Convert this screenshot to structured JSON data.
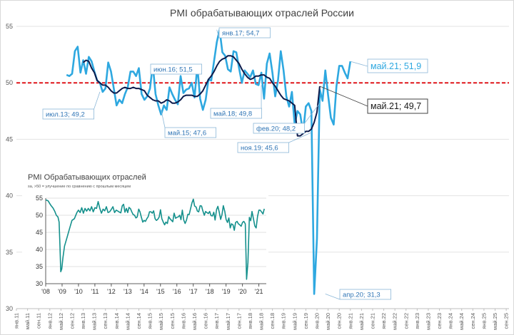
{
  "chart_data": [
    {
      "type": "line",
      "title": "PMI обрабатывающих отраслей России",
      "ylim": [
        30,
        55
      ],
      "y_ticks": [
        30,
        35,
        40,
        45,
        50,
        55
      ],
      "y_tick_labels": [
        "30",
        "35",
        "40",
        "45",
        "50",
        "55"
      ],
      "grid": true,
      "x_tick_labels": [
        "янв.11",
        "май.11",
        "сен.11",
        "янв.12",
        "май.12",
        "сен.12",
        "янв.13",
        "май.13",
        "сен.13",
        "янв.14",
        "май.14",
        "сен.14",
        "янв.15",
        "май.15",
        "сен.15",
        "янв.16",
        "май.16",
        "сен.16",
        "янв.17",
        "май.17",
        "сен.17",
        "янв.18",
        "май.18",
        "сен.18",
        "янв.19",
        "май.19",
        "сен.19",
        "янв.20",
        "май.20",
        "сен.20",
        "янв.21",
        "май.21",
        "сен.21",
        "янв.22",
        "май.22",
        "сен.22",
        "янв.23",
        "май.23",
        "сен.23",
        "янв.24",
        "май.24",
        "сен.24",
        "янв.25",
        "май.25",
        "сен.25"
      ],
      "reference_line": 50,
      "series": [
        {
          "color": "#2ea8e0",
          "start": "2012-07",
          "values": [
            50.7,
            50.6,
            50.8,
            52.8,
            53.2,
            50.9,
            52.0,
            50.8,
            52.3,
            51.9,
            51.0,
            50.2,
            50.0,
            49.2,
            49.5,
            51.8,
            51.0,
            49.5,
            48.0,
            48.5,
            48.2,
            49.0,
            49.6,
            51.0,
            51.0,
            50.6,
            51.3,
            49.0,
            48.5,
            48.8,
            49.5,
            51.6,
            49.0,
            48.0,
            47.2,
            48.0,
            47.6,
            49.6,
            49.0,
            48.5,
            48.1,
            50.6,
            49.1,
            49.4,
            49.5,
            50.0,
            48.7,
            51.5,
            48.6,
            47.6,
            48.5,
            50.3,
            50.2,
            51.9,
            53.6,
            54.7,
            52.7,
            52.4,
            51.2,
            51.0,
            52.8,
            52.7,
            51.3,
            50.0,
            51.1,
            50.8,
            50.5,
            51.1,
            49.9,
            49.8,
            50.9,
            48.6,
            51.7,
            52.6,
            50.9,
            48.8,
            50.2,
            52.8,
            51.1,
            48.8,
            47.9,
            49.2,
            46.3,
            47.5,
            47.2,
            45.6,
            47.9,
            48.2,
            47.5,
            31.3,
            36.2,
            49.4,
            48.4,
            51.1,
            48.9,
            46.9,
            46.3,
            49.7,
            51.5,
            51.5,
            50.9,
            50.4,
            51.9
          ],
          "last_label": "май.21; 51,9"
        },
        {
          "color": "#0d1b4c",
          "start": "2013-01",
          "values": [
            51.8,
            52.0,
            51.9,
            51.3,
            50.9,
            50.2,
            50.0,
            49.8,
            49.8,
            49.6,
            49.3,
            49.1,
            49.1,
            49.3,
            49.5,
            49.6,
            49.5,
            49.5,
            49.6,
            49.5,
            49.5,
            49.4,
            49.3,
            48.9,
            48.7,
            48.5,
            48.4,
            48.4,
            48.2,
            48.3,
            48.5,
            48.4,
            48.2,
            48.2,
            48.3,
            48.5,
            48.8,
            48.9,
            48.9,
            48.9,
            48.8,
            48.8,
            49.0,
            49.3,
            49.8,
            50.3,
            50.6,
            51.0,
            51.5,
            51.9,
            52.1,
            52.2,
            52.4,
            52.4,
            52.3,
            52.0,
            51.7,
            51.2,
            50.8,
            50.5,
            50.3,
            50.4,
            50.6,
            50.6,
            50.7,
            50.7,
            50.5,
            50.4,
            50.0,
            49.7,
            49.3,
            48.9,
            48.6,
            48.5,
            48.4,
            48.2,
            48.0,
            45.3,
            45.3,
            45.5,
            45.7,
            45.7,
            45.9,
            46.5,
            47.4,
            49.7
          ],
          "last_label": "май.21; 49,7"
        }
      ],
      "annotations": [
        "июл.13; 49,2",
        "май.15; 47,6",
        "июн.16; 51,5",
        "янв.17; 54,7",
        "май.18; 49,8",
        "фев.20; 48,2",
        "ноя.19; 45,6",
        "апр.20; 31,3",
        "май.21; 51,9",
        "май.21; 49,7"
      ]
    },
    {
      "type": "line",
      "title": "PMI Обрабатывающих отраслей",
      "subtitle": "sa, >50 = улучшение по сравнению с прошлым месяцем",
      "ylim": [
        30,
        55
      ],
      "y_ticks": [
        30,
        35,
        40,
        45,
        50,
        55
      ],
      "y_tick_labels": [
        "30",
        "35",
        "40",
        "45",
        "50",
        "55"
      ],
      "x_ticks": [
        2008,
        2009,
        2010,
        2011,
        2012,
        2013,
        2014,
        2015,
        2016,
        2017,
        2018,
        2019,
        2020,
        2021
      ],
      "x_tick_labels": [
        "'08",
        "'09",
        "'10",
        "'11",
        "'12",
        "'13",
        "'14",
        "'15",
        "'16",
        "'17",
        "'18",
        "'19",
        "'20",
        "'21"
      ],
      "xlim": [
        2008.0,
        2021.45
      ],
      "series": [
        {
          "color": "#14908c",
          "points": [
            [
              2008.0,
              54.5
            ],
            [
              2008.15,
              54.2
            ],
            [
              2008.3,
              53.0
            ],
            [
              2008.45,
              52.1
            ],
            [
              2008.55,
              51.2
            ],
            [
              2008.65,
              50.0
            ],
            [
              2008.75,
              49.5
            ],
            [
              2008.82,
              48.0
            ],
            [
              2008.87,
              41.0
            ],
            [
              2008.92,
              33.5
            ],
            [
              2008.98,
              34.3
            ],
            [
              2009.05,
              37.5
            ],
            [
              2009.15,
              41.0
            ],
            [
              2009.3,
              43.5
            ],
            [
              2009.45,
              46.0
            ],
            [
              2009.6,
              48.5
            ],
            [
              2009.75,
              49.0
            ],
            [
              2009.9,
              50.8
            ],
            [
              2010.0,
              51.5
            ],
            [
              2010.1,
              50.8
            ],
            [
              2010.2,
              52.2
            ],
            [
              2010.3,
              50.6
            ],
            [
              2010.4,
              52.0
            ],
            [
              2010.5,
              51.2
            ],
            [
              2010.6,
              52.0
            ],
            [
              2010.7,
              51.3
            ],
            [
              2010.8,
              52.5
            ],
            [
              2010.9,
              51.0
            ],
            [
              2011.0,
              52.2
            ],
            [
              2011.1,
              52.0
            ],
            [
              2011.2,
              54.0
            ],
            [
              2011.3,
              52.0
            ],
            [
              2011.4,
              50.6
            ],
            [
              2011.5,
              51.8
            ],
            [
              2011.6,
              51.3
            ],
            [
              2011.7,
              52.5
            ],
            [
              2011.8,
              50.8
            ],
            [
              2011.9,
              51.0
            ],
            [
              2012.0,
              51.7
            ],
            [
              2012.1,
              52.5
            ],
            [
              2012.2,
              50.8
            ],
            [
              2012.3,
              51.5
            ],
            [
              2012.4,
              51.2
            ],
            [
              2012.5,
              50.9
            ],
            [
              2012.58,
              50.7
            ],
            [
              2012.67,
              52.8
            ],
            [
              2012.75,
              53.2
            ],
            [
              2012.83,
              50.9
            ],
            [
              2012.92,
              52.0
            ],
            [
              2013.0,
              50.8
            ],
            [
              2013.08,
              52.3
            ],
            [
              2013.17,
              51.9
            ],
            [
              2013.25,
              51.0
            ],
            [
              2013.33,
              50.2
            ],
            [
              2013.42,
              50.0
            ],
            [
              2013.5,
              49.2
            ],
            [
              2013.58,
              49.5
            ],
            [
              2013.67,
              51.8
            ],
            [
              2013.75,
              51.0
            ],
            [
              2013.83,
              49.5
            ],
            [
              2013.92,
              48.0
            ],
            [
              2014.0,
              48.5
            ],
            [
              2014.08,
              48.2
            ],
            [
              2014.17,
              49.0
            ],
            [
              2014.25,
              49.6
            ],
            [
              2014.33,
              51.0
            ],
            [
              2014.42,
              51.0
            ],
            [
              2014.5,
              50.6
            ],
            [
              2014.58,
              51.3
            ],
            [
              2014.67,
              49.0
            ],
            [
              2014.75,
              48.5
            ],
            [
              2014.83,
              48.8
            ],
            [
              2014.92,
              49.5
            ],
            [
              2015.0,
              51.6
            ],
            [
              2015.08,
              49.0
            ],
            [
              2015.17,
              48.0
            ],
            [
              2015.25,
              47.2
            ],
            [
              2015.33,
              48.0
            ],
            [
              2015.42,
              47.6
            ],
            [
              2015.5,
              49.6
            ],
            [
              2015.58,
              49.0
            ],
            [
              2015.67,
              48.5
            ],
            [
              2015.75,
              48.1
            ],
            [
              2015.83,
              50.6
            ],
            [
              2015.92,
              49.1
            ],
            [
              2016.0,
              49.4
            ],
            [
              2016.08,
              49.5
            ],
            [
              2016.17,
              50.0
            ],
            [
              2016.25,
              48.7
            ],
            [
              2016.33,
              51.5
            ],
            [
              2016.42,
              48.6
            ],
            [
              2016.5,
              47.6
            ],
            [
              2016.58,
              48.5
            ],
            [
              2016.67,
              50.3
            ],
            [
              2016.75,
              50.2
            ],
            [
              2016.83,
              51.9
            ],
            [
              2016.92,
              53.6
            ],
            [
              2017.0,
              54.7
            ],
            [
              2017.08,
              52.7
            ],
            [
              2017.17,
              52.4
            ],
            [
              2017.25,
              51.2
            ],
            [
              2017.33,
              51.0
            ],
            [
              2017.42,
              52.8
            ],
            [
              2017.5,
              52.7
            ],
            [
              2017.58,
              51.3
            ],
            [
              2017.67,
              50.0
            ],
            [
              2017.75,
              51.1
            ],
            [
              2017.83,
              50.8
            ],
            [
              2017.92,
              50.5
            ],
            [
              2018.0,
              51.1
            ],
            [
              2018.08,
              49.9
            ],
            [
              2018.17,
              49.8
            ],
            [
              2018.25,
              50.9
            ],
            [
              2018.33,
              48.6
            ],
            [
              2018.42,
              51.7
            ],
            [
              2018.5,
              52.6
            ],
            [
              2018.58,
              50.9
            ],
            [
              2018.67,
              48.8
            ],
            [
              2018.75,
              50.2
            ],
            [
              2018.83,
              52.8
            ],
            [
              2018.92,
              51.1
            ],
            [
              2019.0,
              48.8
            ],
            [
              2019.08,
              47.9
            ],
            [
              2019.17,
              49.2
            ],
            [
              2019.25,
              46.3
            ],
            [
              2019.33,
              47.5
            ],
            [
              2019.42,
              47.2
            ],
            [
              2019.5,
              45.6
            ],
            [
              2019.58,
              47.9
            ],
            [
              2019.67,
              48.2
            ],
            [
              2019.75,
              47.5
            ],
            [
              2019.83,
              47.2
            ],
            [
              2019.92,
              46.8
            ],
            [
              2020.0,
              47.9
            ],
            [
              2020.08,
              48.2
            ],
            [
              2020.17,
              47.5
            ],
            [
              2020.25,
              31.3
            ],
            [
              2020.33,
              36.2
            ],
            [
              2020.42,
              49.4
            ],
            [
              2020.5,
              48.4
            ],
            [
              2020.58,
              51.1
            ],
            [
              2020.67,
              48.9
            ],
            [
              2020.75,
              46.9
            ],
            [
              2020.83,
              46.3
            ],
            [
              2020.92,
              49.7
            ],
            [
              2021.0,
              51.5
            ],
            [
              2021.08,
              51.5
            ],
            [
              2021.17,
              50.9
            ],
            [
              2021.25,
              50.4
            ],
            [
              2021.33,
              51.9
            ]
          ]
        }
      ]
    }
  ]
}
